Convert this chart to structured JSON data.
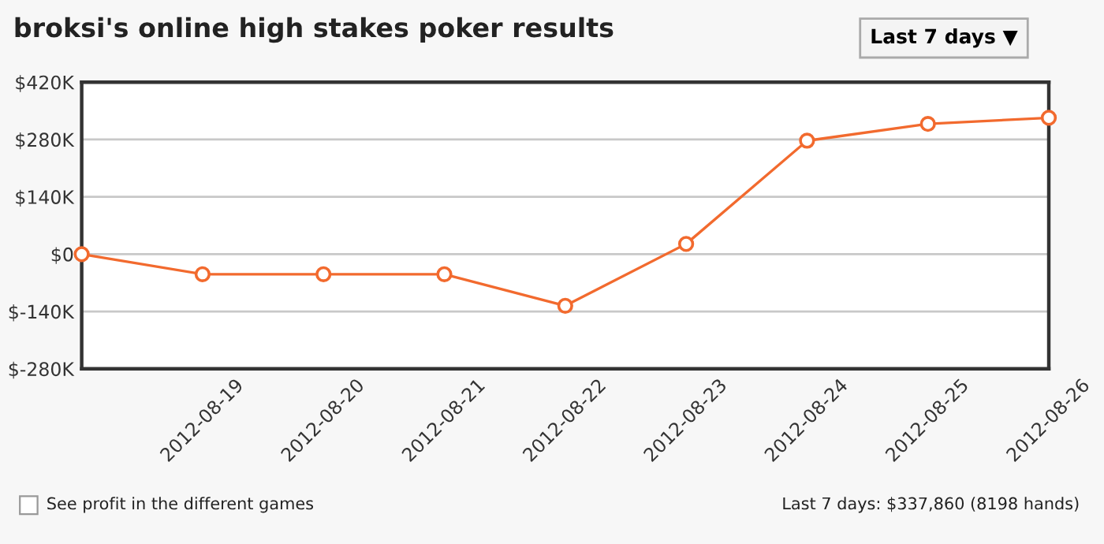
{
  "chart_data": {
    "type": "line",
    "title": "broksi's online high stakes poker results",
    "x": [
      "2012-08-18",
      "2012-08-19",
      "2012-08-20",
      "2012-08-21",
      "2012-08-22",
      "2012-08-23",
      "2012-08-24",
      "2012-08-25",
      "2012-08-26"
    ],
    "series": [
      {
        "color": "#f26a2e",
        "values": [
          0,
          -49000,
          -49000,
          -49000,
          -126000,
          25000,
          277000,
          318000,
          333000
        ]
      }
    ],
    "xlim": [
      "2012-08-18",
      "2012-08-26"
    ],
    "xticks": [
      "2012-08-19",
      "2012-08-20",
      "2012-08-21",
      "2012-08-22",
      "2012-08-23",
      "2012-08-24",
      "2012-08-25",
      "2012-08-26"
    ],
    "ylim": [
      -280000,
      420000
    ],
    "yticks": [
      {
        "value": -280000,
        "label": "$-280K"
      },
      {
        "value": -140000,
        "label": "$-140K"
      },
      {
        "value": 0,
        "label": "$0"
      },
      {
        "value": 140000,
        "label": "$140K"
      },
      {
        "value": 280000,
        "label": "$280K"
      },
      {
        "value": 420000,
        "label": "$420K"
      }
    ],
    "grid": "y",
    "marker": "circle",
    "line_style": "solid",
    "legend": false,
    "annotations": [
      "Last 7 days ▼",
      "See profit in the different games",
      "Last 7 days: $337,860 (8198 hands)"
    ]
  }
}
